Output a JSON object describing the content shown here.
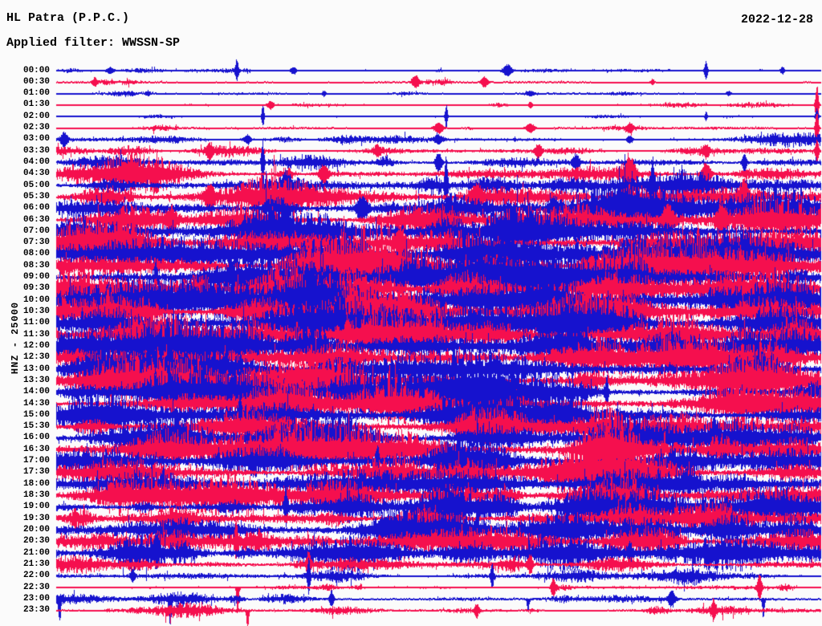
{
  "header": {
    "station_title": "HL Patra (P.P.C.)",
    "date": "2022-12-28",
    "filter_label": "Applied filter: WWSSN-SP"
  },
  "chart_data": {
    "type": "line",
    "subtype": "helicorder-seismogram",
    "title": "HL Patra (P.P.C.)",
    "date": "2022-12-28",
    "filter": "WWSSN-SP",
    "ylabel": "HNZ - 25000",
    "row_interval_minutes": 30,
    "first_row_time": "00:00",
    "last_row_time": "23:30",
    "legend_position": "none",
    "grid": false,
    "colors": {
      "blue": "#1612CE",
      "red": "#F50F4E"
    },
    "events_format": "[position_fraction_0to1, amplitude_px, sigma_px, direction(-1=down,0=both,1=up)]",
    "rows": [
      {
        "t": "00:00",
        "c": "blue",
        "a": 2.0,
        "ev": [
          [
            0.07,
            4,
            3
          ],
          [
            0.236,
            14,
            1.5
          ],
          [
            0.31,
            5,
            3
          ],
          [
            0.59,
            7,
            4
          ],
          [
            0.85,
            12,
            1.5
          ],
          [
            0.95,
            4,
            2
          ]
        ]
      },
      {
        "t": "00:30",
        "c": "red",
        "a": 1.8,
        "ev": [
          [
            0.05,
            6,
            2
          ],
          [
            0.47,
            8,
            3
          ],
          [
            0.56,
            7,
            3
          ],
          [
            0.78,
            4,
            2
          ]
        ]
      },
      {
        "t": "01:00",
        "c": "blue",
        "a": 1.9,
        "ev": [
          [
            0.12,
            3,
            2
          ],
          [
            0.35,
            4,
            2
          ],
          [
            0.62,
            3,
            4
          ],
          [
            0.88,
            3,
            2
          ]
        ]
      },
      {
        "t": "01:30",
        "c": "red",
        "a": 1.8,
        "ev": [
          [
            0.28,
            5,
            3
          ],
          [
            0.62,
            4,
            2
          ],
          [
            0.995,
            26,
            1.5
          ]
        ]
      },
      {
        "t": "02:00",
        "c": "blue",
        "a": 1.3,
        "ev": [
          [
            0.27,
            15,
            1.2
          ],
          [
            0.51,
            16,
            1.2
          ],
          [
            0.85,
            6,
            1.2
          ],
          [
            0.995,
            10,
            1.5
          ]
        ]
      },
      {
        "t": "02:30",
        "c": "red",
        "a": 2.2,
        "ev": [
          [
            0.5,
            7,
            4
          ],
          [
            0.62,
            6,
            4
          ],
          [
            0.75,
            5,
            3
          ],
          [
            0.995,
            24,
            1.5
          ]
        ]
      },
      {
        "t": "03:00",
        "c": "blue",
        "a": 3.2,
        "ev": [
          [
            0.01,
            9,
            3
          ],
          [
            0.25,
            6,
            3
          ],
          [
            0.5,
            5,
            4
          ],
          [
            0.75,
            5,
            3
          ]
        ]
      },
      {
        "t": "03:30",
        "c": "red",
        "a": 3.0,
        "ev": [
          [
            0.2,
            7,
            3
          ],
          [
            0.42,
            6,
            3
          ],
          [
            0.63,
            8,
            3
          ],
          [
            0.85,
            6,
            3
          ],
          [
            0.995,
            16,
            1.5
          ]
        ]
      },
      {
        "t": "04:00",
        "c": "blue",
        "a": 4.5,
        "ev": [
          [
            0.27,
            28,
            1.3
          ],
          [
            0.5,
            12,
            3
          ],
          [
            0.68,
            10,
            3
          ],
          [
            0.9,
            12,
            2
          ]
        ]
      },
      {
        "t": "04:30",
        "c": "red",
        "a": 6.0,
        "ev": [
          [
            0.1,
            10,
            4
          ],
          [
            0.35,
            12,
            4
          ],
          [
            0.75,
            16,
            5
          ],
          [
            0.85,
            14,
            4
          ]
        ]
      },
      {
        "t": "05:00",
        "c": "blue",
        "a": 7.0,
        "ev": [
          [
            0.3,
            12,
            4
          ],
          [
            0.51,
            36,
            1.4
          ],
          [
            0.78,
            28,
            1.6
          ]
        ]
      },
      {
        "t": "05:30",
        "c": "red",
        "a": 7.5,
        "ev": [
          [
            0.2,
            12,
            4
          ],
          [
            0.55,
            14,
            4
          ],
          [
            0.9,
            15,
            4
          ]
        ]
      },
      {
        "t": "06:00",
        "c": "blue",
        "a": 8.5,
        "ev": [
          [
            0.4,
            14,
            5
          ],
          [
            0.65,
            12,
            4
          ]
        ]
      },
      {
        "t": "06:30",
        "c": "red",
        "a": 8.5,
        "ev": [
          [
            0.15,
            12,
            4
          ],
          [
            0.8,
            18,
            5
          ],
          [
            0.87,
            16,
            4
          ]
        ]
      },
      {
        "t": "07:00",
        "c": "blue",
        "a": 10,
        "ev": [
          [
            0.3,
            14,
            4
          ],
          [
            0.62,
            12,
            4
          ]
        ]
      },
      {
        "t": "07:30",
        "c": "red",
        "a": 10,
        "ev": [
          [
            0.45,
            12,
            4
          ]
        ]
      },
      {
        "t": "08:00",
        "c": "blue",
        "a": 11,
        "ev": [
          [
            0.4,
            24,
            1.4
          ]
        ]
      },
      {
        "t": "08:30",
        "c": "red",
        "a": 11,
        "ev": []
      },
      {
        "t": "09:00",
        "c": "blue",
        "a": 11,
        "ev": [
          [
            0.13,
            22,
            1.4
          ]
        ]
      },
      {
        "t": "09:30",
        "c": "red",
        "a": 11,
        "ev": []
      },
      {
        "t": "10:00",
        "c": "blue",
        "a": 12,
        "ev": [
          [
            0.23,
            26,
            1.4
          ],
          [
            0.64,
            20,
            1.4
          ]
        ]
      },
      {
        "t": "10:30",
        "c": "red",
        "a": 11,
        "ev": []
      },
      {
        "t": "11:00",
        "c": "blue",
        "a": 12,
        "ev": []
      },
      {
        "t": "11:30",
        "c": "red",
        "a": 11,
        "ev": [
          [
            0.38,
            18,
            2
          ]
        ]
      },
      {
        "t": "12:00",
        "c": "blue",
        "a": 12,
        "ev": [
          [
            0.335,
            28,
            1.4
          ]
        ]
      },
      {
        "t": "12:30",
        "c": "red",
        "a": 11,
        "ev": []
      },
      {
        "t": "13:00",
        "c": "blue",
        "a": 11,
        "ev": [
          [
            0.52,
            22,
            1.4
          ]
        ]
      },
      {
        "t": "13:30",
        "c": "red",
        "a": 11,
        "ev": []
      },
      {
        "t": "14:00",
        "c": "blue",
        "a": 11,
        "ev": [
          [
            0.72,
            20,
            1.4
          ]
        ]
      },
      {
        "t": "14:30",
        "c": "red",
        "a": 10,
        "ev": []
      },
      {
        "t": "15:00",
        "c": "blue",
        "a": 11,
        "ev": [
          [
            0.24,
            24,
            1.4
          ]
        ]
      },
      {
        "t": "15:30",
        "c": "red",
        "a": 10,
        "ev": []
      },
      {
        "t": "16:00",
        "c": "blue",
        "a": 11,
        "ev": [
          [
            0.86,
            20,
            1.4
          ]
        ]
      },
      {
        "t": "16:30",
        "c": "red",
        "a": 10,
        "ev": []
      },
      {
        "t": "17:00",
        "c": "blue",
        "a": 10,
        "ev": [
          [
            0.42,
            22,
            1.4
          ]
        ]
      },
      {
        "t": "17:30",
        "c": "red",
        "a": 10,
        "ev": []
      },
      {
        "t": "18:00",
        "c": "blue",
        "a": 9,
        "ev": [
          [
            0.14,
            20,
            1.4
          ]
        ]
      },
      {
        "t": "18:30",
        "c": "red",
        "a": 9,
        "ev": []
      },
      {
        "t": "19:00",
        "c": "blue",
        "a": 9,
        "ev": [
          [
            0.3,
            24,
            1.4
          ],
          [
            0.69,
            20,
            1.4
          ]
        ]
      },
      {
        "t": "19:30",
        "c": "red",
        "a": 8.5,
        "ev": []
      },
      {
        "t": "20:00",
        "c": "blue",
        "a": 8.5,
        "ev": [
          [
            0.55,
            18,
            1.4
          ]
        ]
      },
      {
        "t": "20:30",
        "c": "red",
        "a": 8.0,
        "ev": [
          [
            0.235,
            26,
            1.4
          ]
        ]
      },
      {
        "t": "21:00",
        "c": "blue",
        "a": 7.0,
        "ev": [
          [
            0.13,
            16,
            2
          ],
          [
            0.75,
            14,
            2
          ]
        ]
      },
      {
        "t": "21:30",
        "c": "red",
        "a": 5.5,
        "ev": [
          [
            0.33,
            16,
            2
          ],
          [
            0.62,
            12,
            2
          ]
        ]
      },
      {
        "t": "22:00",
        "c": "blue",
        "a": 4.0,
        "ev": [
          [
            0.1,
            8,
            2
          ],
          [
            0.33,
            24,
            1.3
          ],
          [
            0.57,
            16,
            1.5
          ]
        ]
      },
      {
        "t": "22:30",
        "c": "red",
        "a": 2.8,
        "ev": [
          [
            0.237,
            40,
            1.2,
            -1
          ],
          [
            0.65,
            12,
            2
          ],
          [
            0.92,
            16,
            2
          ]
        ]
      },
      {
        "t": "23:00",
        "c": "blue",
        "a": 3.5,
        "ev": [
          [
            0.004,
            32,
            1.3,
            -1
          ],
          [
            0.149,
            32,
            1.2,
            -1
          ],
          [
            0.36,
            10,
            2
          ],
          [
            0.617,
            20,
            1.2,
            -1
          ],
          [
            0.805,
            10,
            3
          ],
          [
            0.925,
            24,
            1.2,
            -1
          ]
        ]
      },
      {
        "t": "23:30",
        "c": "red",
        "a": 3.0,
        "ev": [
          [
            0.25,
            24,
            1.3,
            -1
          ],
          [
            0.55,
            8,
            2
          ],
          [
            0.86,
            10,
            2
          ]
        ]
      }
    ]
  }
}
